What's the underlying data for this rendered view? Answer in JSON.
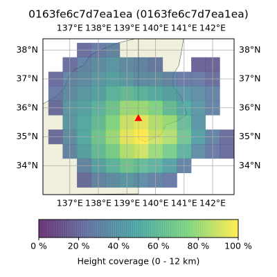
{
  "chart_data": {
    "type": "heatmap",
    "title": "0163fe6c7d7ea1ea (0163fe6c7d7ea1ea)",
    "xlim": [
      136.06,
      142.75
    ],
    "ylim": [
      33.0,
      38.39
    ],
    "xticks": [
      {
        "value": 137,
        "label": "137°E"
      },
      {
        "value": 138,
        "label": "138°E"
      },
      {
        "value": 139,
        "label": "139°E"
      },
      {
        "value": 140,
        "label": "140°E"
      },
      {
        "value": 141,
        "label": "141°E"
      },
      {
        "value": 142,
        "label": "142°E"
      }
    ],
    "yticks": [
      {
        "value": 34,
        "label": "34°N"
      },
      {
        "value": 35,
        "label": "35°N"
      },
      {
        "value": 36,
        "label": "36°N"
      },
      {
        "value": 37,
        "label": "37°N"
      },
      {
        "value": 38,
        "label": "38°N"
      }
    ],
    "grid": true,
    "x": [
      136.5,
      137,
      137.5,
      138,
      138.5,
      139,
      139.5,
      140,
      140.5,
      141,
      141.5,
      142,
      142.5
    ],
    "y": [
      38.0,
      37.5,
      37.0,
      36.5,
      36.0,
      35.5,
      35.0,
      34.5,
      34.0,
      33.5
    ],
    "values": [
      [
        null,
        null,
        20,
        25,
        30,
        null,
        null,
        null,
        null,
        null,
        null,
        null,
        null
      ],
      [
        null,
        20,
        30,
        35,
        40,
        35,
        30,
        25,
        null,
        null,
        15,
        15,
        null
      ],
      [
        20,
        30,
        35,
        40,
        45,
        40,
        35,
        35,
        30,
        25,
        25,
        20,
        null
      ],
      [
        25,
        35,
        40,
        45,
        55,
        60,
        55,
        50,
        45,
        40,
        35,
        30,
        null
      ],
      [
        20,
        40,
        45,
        55,
        65,
        80,
        80,
        75,
        60,
        50,
        40,
        30,
        null
      ],
      [
        null,
        40,
        50,
        60,
        75,
        90,
        95,
        85,
        80,
        60,
        40,
        null,
        null
      ],
      [
        20,
        35,
        50,
        65,
        80,
        95,
        100,
        90,
        85,
        65,
        45,
        30,
        20
      ],
      [
        null,
        30,
        45,
        60,
        70,
        85,
        90,
        80,
        70,
        55,
        35,
        25,
        20
      ],
      [
        null,
        null,
        30,
        45,
        55,
        65,
        60,
        55,
        45,
        30,
        null,
        null,
        null
      ],
      [
        null,
        null,
        20,
        30,
        35,
        40,
        35,
        30,
        25,
        null,
        null,
        null,
        null
      ]
    ],
    "marker": {
      "lon": 139.4,
      "lat": 35.64,
      "color": "#ff0000"
    },
    "colorbar": {
      "label": "Height coverage (0 - 12 km)",
      "lim": [
        0,
        100
      ],
      "ticks": [
        {
          "value": 0,
          "label": "0 %"
        },
        {
          "value": 20,
          "label": "20 %"
        },
        {
          "value": 40,
          "label": "40 %"
        },
        {
          "value": 60,
          "label": "60 %"
        },
        {
          "value": 80,
          "label": "80 %"
        },
        {
          "value": 100,
          "label": "100 %"
        }
      ]
    }
  }
}
